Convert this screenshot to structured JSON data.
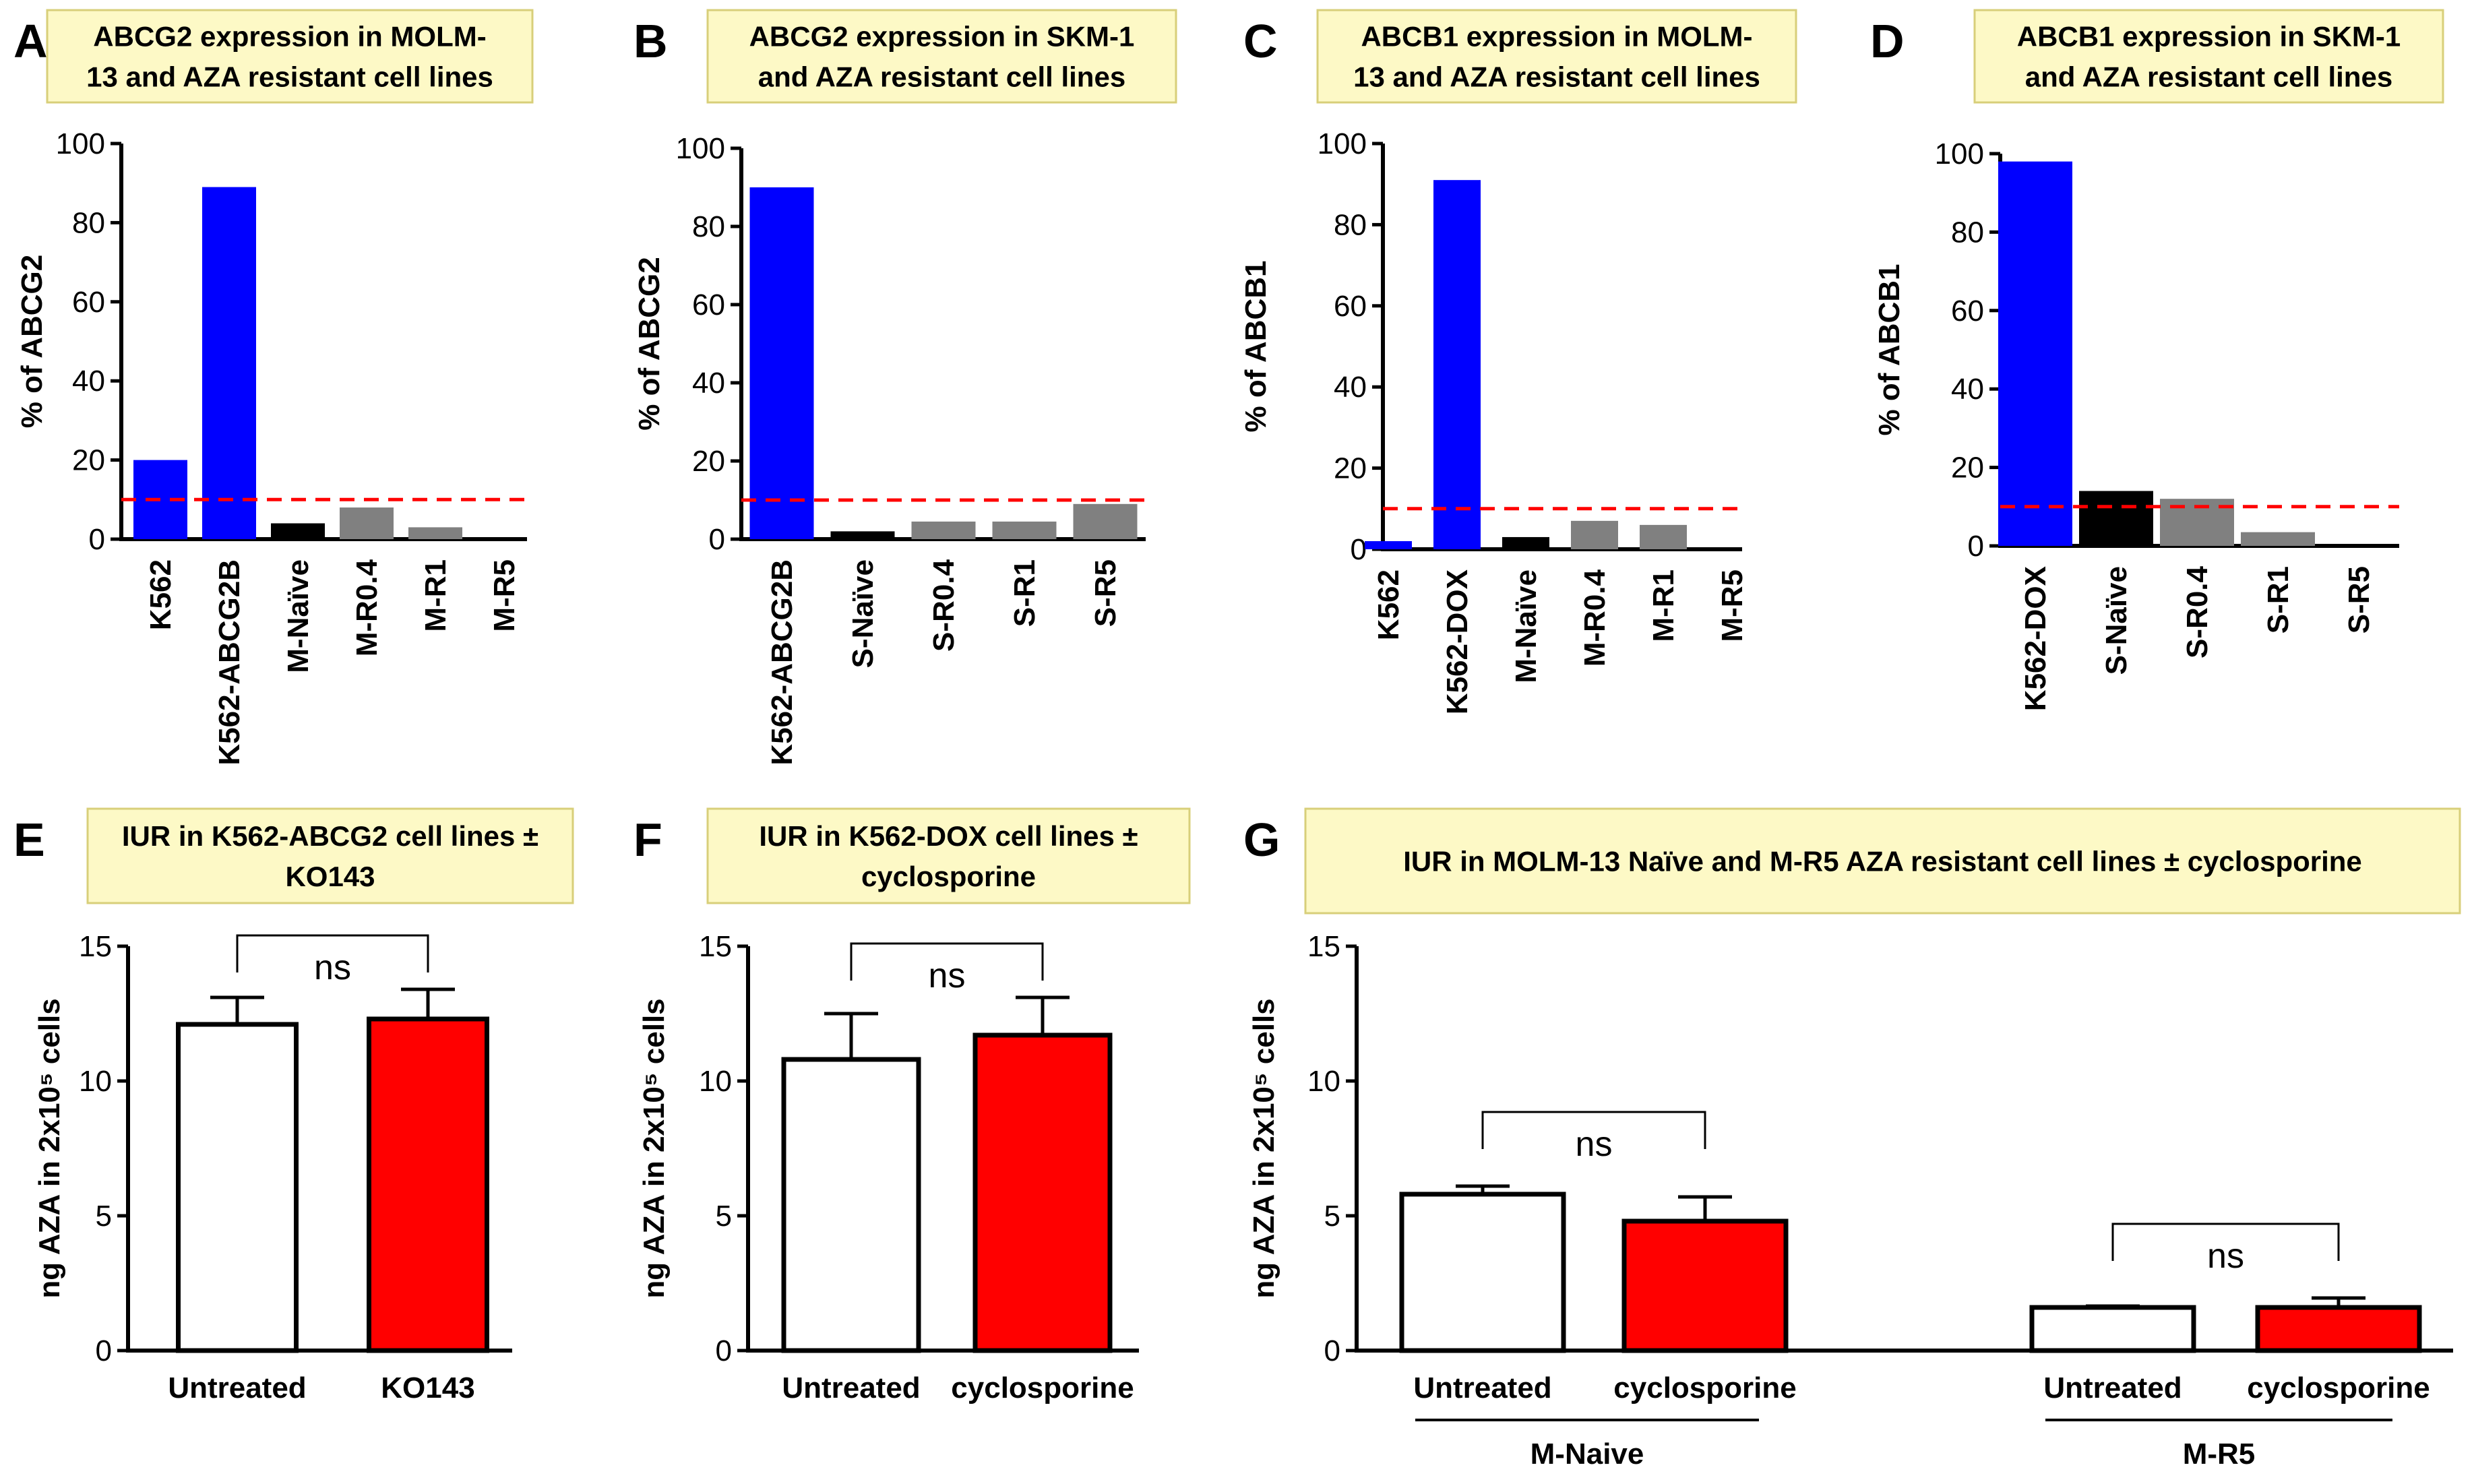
{
  "panel_labels": [
    "A",
    "B",
    "C",
    "D",
    "E",
    "F",
    "G"
  ],
  "chart_data": [
    {
      "id": "A",
      "type": "bar",
      "title": "ABCG2 expression in MOLM-13 and AZA resistant cell lines",
      "title_lines": [
        "ABCG2 expression in MOLM-",
        "13 and AZA resistant cell lines"
      ],
      "ylabel": "% of ABCG2",
      "ylim": [
        0,
        100
      ],
      "yticks": [
        "0",
        "20",
        "40",
        "60",
        "80",
        "100"
      ],
      "categories": [
        "K562",
        "K562-ABCG2B",
        "M-Naïve",
        "M-R0.4",
        "M-R1",
        "M-R5"
      ],
      "values": [
        20,
        89,
        4,
        8,
        3,
        0
      ],
      "colors": [
        "#0000ff",
        "#0000ff",
        "#000000",
        "#808080",
        "#808080",
        "#808080"
      ],
      "threshold": 10
    },
    {
      "id": "B",
      "type": "bar",
      "title": "ABCG2 expression in SKM-1 and AZA resistant cell lines",
      "title_lines": [
        "ABCG2 expression in SKM-1",
        "and AZA resistant cell lines"
      ],
      "ylabel": "% of ABCG2",
      "ylim": [
        0,
        100
      ],
      "yticks": [
        "0",
        "20",
        "40",
        "60",
        "80",
        "100"
      ],
      "categories": [
        "K562-ABCG2B",
        "S-Naïve",
        "S-R0.4",
        "S-R1",
        "S-R5"
      ],
      "values": [
        90,
        2,
        4.5,
        4.5,
        9
      ],
      "colors": [
        "#0000ff",
        "#000000",
        "#808080",
        "#808080",
        "#808080"
      ],
      "threshold": 10
    },
    {
      "id": "C",
      "type": "bar",
      "title": "ABCB1 expression in MOLM-13 and AZA resistant cell lines",
      "title_lines": [
        "ABCB1 expression in MOLM-",
        "13 and AZA resistant cell lines"
      ],
      "ylabel": "% of ABCB1",
      "ylim": [
        0,
        100
      ],
      "yticks": [
        "0",
        "20",
        "40",
        "60",
        "80",
        "100"
      ],
      "categories": [
        "K562",
        "K562-DOX",
        "M-Naïve",
        "M-R0.4",
        "M-R1",
        "M-R5"
      ],
      "values": [
        2,
        91,
        3,
        7,
        6,
        0
      ],
      "colors": [
        "#0000ff",
        "#0000ff",
        "#000000",
        "#808080",
        "#808080",
        "#808080"
      ],
      "threshold": 10
    },
    {
      "id": "D",
      "type": "bar",
      "title": "ABCB1 expression in SKM-1 and AZA resistant cell lines",
      "title_lines": [
        "ABCB1 expression in SKM-1",
        "and AZA resistant cell lines"
      ],
      "ylabel": "% of ABCB1",
      "ylim": [
        0,
        100
      ],
      "yticks": [
        "0",
        "20",
        "40",
        "60",
        "80",
        "100"
      ],
      "categories": [
        "K562-DOX",
        "S-Naïve",
        "S-R0.4",
        "S-R1",
        "S-R5"
      ],
      "values": [
        98,
        14,
        12,
        3.5,
        0
      ],
      "colors": [
        "#0000ff",
        "#000000",
        "#808080",
        "#808080",
        "#808080"
      ],
      "threshold": 10
    },
    {
      "id": "E",
      "type": "bar",
      "title": "IUR in K562-ABCG2 cell lines ± KO143",
      "title_lines": [
        "IUR in K562-ABCG2 cell lines ±",
        "KO143"
      ],
      "ylabel": "ng AZA in 2x10⁵ cells",
      "ylim": [
        0,
        15
      ],
      "yticks": [
        "0",
        "5",
        "10",
        "15"
      ],
      "categories": [
        "Untreated",
        "KO143"
      ],
      "values": [
        12.1,
        12.3
      ],
      "errors": [
        1.0,
        1.1
      ],
      "colors": [
        "#ffffff",
        "#ff0000"
      ],
      "annotation": "ns"
    },
    {
      "id": "F",
      "type": "bar",
      "title": "IUR in K562-DOX cell lines ± cyclosporine",
      "title_lines": [
        "IUR in K562-DOX cell lines ±",
        "cyclosporine"
      ],
      "ylabel": "ng AZA in 2x10⁵ cells",
      "ylim": [
        0,
        15
      ],
      "yticks": [
        "0",
        "5",
        "10",
        "15"
      ],
      "categories": [
        "Untreated",
        "cyclosporine"
      ],
      "values": [
        10.8,
        11.7
      ],
      "errors": [
        1.7,
        1.4
      ],
      "colors": [
        "#ffffff",
        "#ff0000"
      ],
      "annotation": "ns"
    },
    {
      "id": "G",
      "type": "bar",
      "title": "IUR in MOLM-13 Naïve and M-R5 AZA resistant cell lines ± cyclosporine",
      "title_lines": [
        "IUR in MOLM-13 Naïve and M-R5 AZA resistant cell lines ± cyclosporine"
      ],
      "ylabel": "ng AZA in 2x10⁵ cells",
      "ylim": [
        0,
        15
      ],
      "yticks": [
        "0",
        "5",
        "10",
        "15"
      ],
      "categories": [
        "Untreated",
        "cyclosporine",
        "Untreated",
        "cyclosporine"
      ],
      "groups": [
        "M-Naive",
        "M-R5"
      ],
      "values": [
        5.8,
        4.8,
        1.6,
        1.6
      ],
      "errors": [
        0.3,
        0.9,
        0.05,
        0.35
      ],
      "colors": [
        "#ffffff",
        "#ff0000",
        "#ffffff",
        "#ff0000"
      ],
      "annotation": "ns"
    }
  ]
}
